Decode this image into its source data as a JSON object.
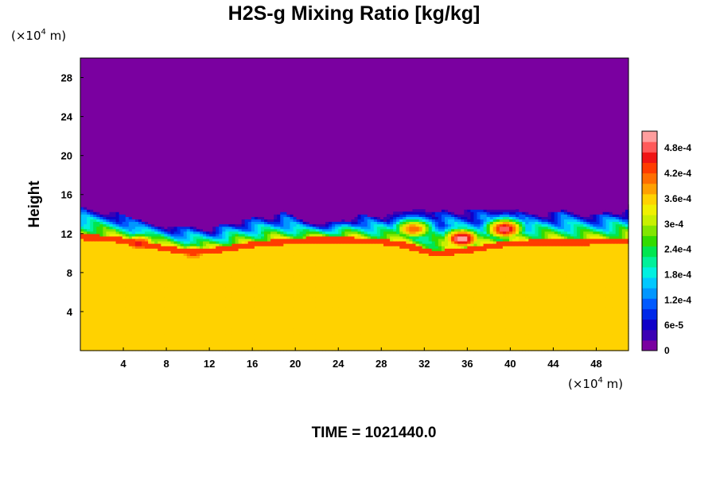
{
  "chart_data": {
    "type": "heatmap",
    "title": "H2S-g Mixing Ratio [kg/kg]",
    "ylabel": "Height",
    "x_unit": {
      "prefix": "(×10",
      "exp": "4",
      "suffix": " m)"
    },
    "y_unit": {
      "prefix": "(×10",
      "exp": "4",
      "suffix": " m)"
    },
    "xlim": [
      0,
      51
    ],
    "ylim": [
      0,
      30
    ],
    "x_ticks": [
      4,
      8,
      12,
      16,
      20,
      24,
      28,
      32,
      36,
      40,
      44,
      48
    ],
    "y_ticks": [
      4,
      8,
      12,
      16,
      20,
      24,
      28
    ],
    "colorbar": {
      "range": [
        0,
        0.00052
      ],
      "tick_values": [
        0,
        6e-05,
        0.00012,
        0.00018,
        0.00024,
        0.0003,
        0.00036,
        0.00042,
        0.00048
      ],
      "tick_labels": [
        "0",
        "6e-5",
        "1.2e-4",
        "1.8e-4",
        "2.4e-4",
        "3e-4",
        "3.6e-4",
        "4.2e-4",
        "4.8e-4"
      ],
      "colors": [
        "#7a00a0",
        "#3c00b4",
        "#1000c8",
        "#0028e8",
        "#005aff",
        "#0096ff",
        "#00c8ff",
        "#00f0e0",
        "#00f09a",
        "#00e650",
        "#32dc00",
        "#82e600",
        "#c8f000",
        "#f0f000",
        "#ffd200",
        "#ffa000",
        "#ff6e00",
        "#ff3c00",
        "#f01414",
        "#ff5a5a",
        "#ff9e9e"
      ]
    },
    "field": {
      "background_value": 0.0,
      "lower_layer_value": 0.00037,
      "interface_height": [
        [
          0,
          12.0
        ],
        [
          3,
          11.8
        ],
        [
          6,
          11.2
        ],
        [
          9,
          10.6
        ],
        [
          12,
          10.5
        ],
        [
          16,
          11.2
        ],
        [
          20,
          11.6
        ],
        [
          24,
          11.7
        ],
        [
          28,
          11.5
        ],
        [
          30,
          11.2
        ],
        [
          33,
          10.3
        ],
        [
          36,
          10.6
        ],
        [
          39,
          11.2
        ],
        [
          42,
          11.4
        ],
        [
          45,
          11.4
        ],
        [
          48,
          11.5
        ],
        [
          51,
          11.6
        ]
      ],
      "mixing_top_height": [
        [
          0,
          14.8
        ],
        [
          2,
          14.5
        ],
        [
          4,
          14.0
        ],
        [
          6,
          13.2
        ],
        [
          9,
          12.8
        ],
        [
          12,
          12.6
        ],
        [
          15,
          13.5
        ],
        [
          17,
          13.8
        ],
        [
          19,
          14.2
        ],
        [
          21,
          13.2
        ],
        [
          24,
          13.2
        ],
        [
          26,
          14.0
        ],
        [
          28,
          13.6
        ],
        [
          31,
          14.0
        ],
        [
          33,
          14.3
        ],
        [
          36,
          14.6
        ],
        [
          39,
          14.5
        ],
        [
          42,
          14.0
        ],
        [
          45,
          14.4
        ],
        [
          48,
          14.0
        ],
        [
          51,
          14.6
        ]
      ],
      "plumes": [
        {
          "x": 35.5,
          "y": 11.5,
          "peak": 0.00052
        },
        {
          "x": 39.5,
          "y": 12.5,
          "peak": 0.0005
        },
        {
          "x": 5.5,
          "y": 11.0,
          "peak": 0.00046
        },
        {
          "x": 10.5,
          "y": 10.0,
          "peak": 0.00044
        },
        {
          "x": 31.0,
          "y": 12.5,
          "peak": 0.00042
        }
      ]
    }
  },
  "footer": {
    "label": "TIME = 1021440.0"
  }
}
